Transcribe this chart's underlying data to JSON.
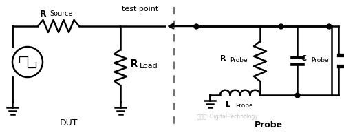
{
  "background_color": "#ffffff",
  "dut_label": "DUT",
  "probe_label": "Probe",
  "test_point_label": "test point",
  "watermark": "微信号: Digital-Technology",
  "r_source_label": "R",
  "r_source_sub": "Source",
  "r_load_label": "R",
  "r_load_sub": "Load",
  "r_probe_label": "R",
  "r_probe_sub": "Probe",
  "c_probe_label": "C",
  "c_probe_sub": "Probe",
  "l_probe_label": "L",
  "l_probe_sub": "Probe",
  "line_color": "#000000",
  "dashed_color": "#666666",
  "lw": 1.8
}
